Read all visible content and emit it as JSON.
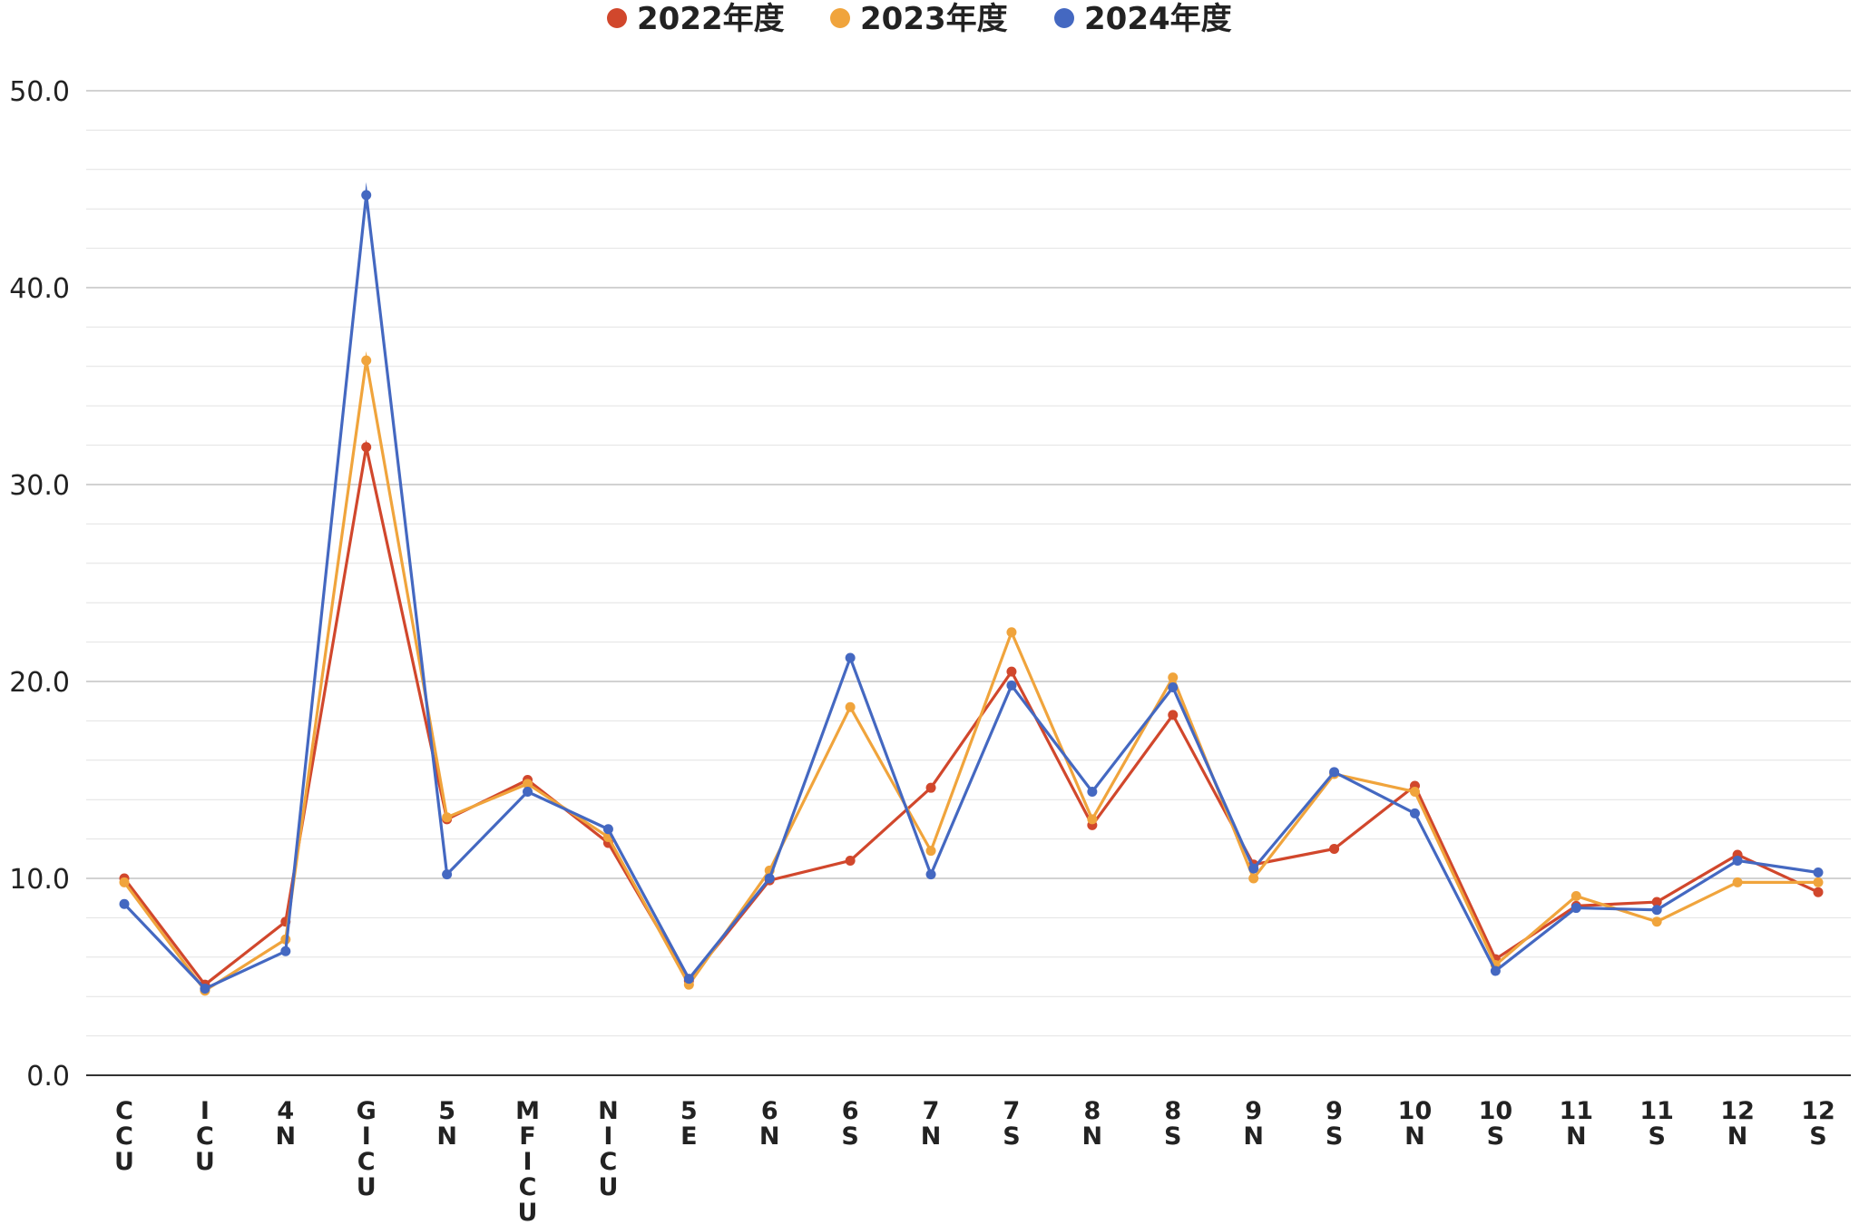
{
  "chart_data": {
    "type": "line",
    "categories": [
      "CCU",
      "ICU",
      "4N",
      "GICU",
      "5N",
      "MFICU",
      "NICU",
      "5E",
      "6N",
      "6S",
      "7N",
      "7S",
      "8N",
      "8S",
      "9N",
      "9S",
      "10N",
      "10S",
      "11N",
      "11S",
      "12N",
      "12S"
    ],
    "series": [
      {
        "name": "2022年度",
        "color": "#d1472c",
        "values": [
          10.0,
          4.6,
          7.8,
          31.9,
          13.0,
          15.0,
          11.8,
          4.8,
          9.9,
          10.9,
          14.6,
          20.5,
          12.7,
          18.3,
          10.7,
          11.5,
          14.7,
          5.9,
          8.6,
          8.8,
          11.2,
          9.3
        ]
      },
      {
        "name": "2023年度",
        "color": "#f0a43c",
        "values": [
          9.8,
          4.3,
          6.9,
          36.3,
          13.1,
          14.8,
          12.1,
          4.6,
          10.4,
          18.7,
          11.4,
          22.5,
          13.0,
          20.2,
          10.0,
          15.3,
          14.4,
          5.6,
          9.1,
          7.8,
          9.8,
          9.8
        ]
      },
      {
        "name": "2024年度",
        "color": "#4468c1",
        "values": [
          8.7,
          4.4,
          6.3,
          44.7,
          10.2,
          14.4,
          12.5,
          4.9,
          10.0,
          21.2,
          10.2,
          19.8,
          14.4,
          19.7,
          10.5,
          15.4,
          13.3,
          5.3,
          8.5,
          8.4,
          10.9,
          10.3
        ]
      }
    ],
    "y_ticks": [
      "0.0",
      "10.0",
      "20.0",
      "30.0",
      "40.0",
      "50.0"
    ],
    "ylim": [
      0,
      50
    ],
    "minor_grid_step": 2,
    "legend_position": "top-center",
    "xlabel": "",
    "ylabel": ""
  }
}
